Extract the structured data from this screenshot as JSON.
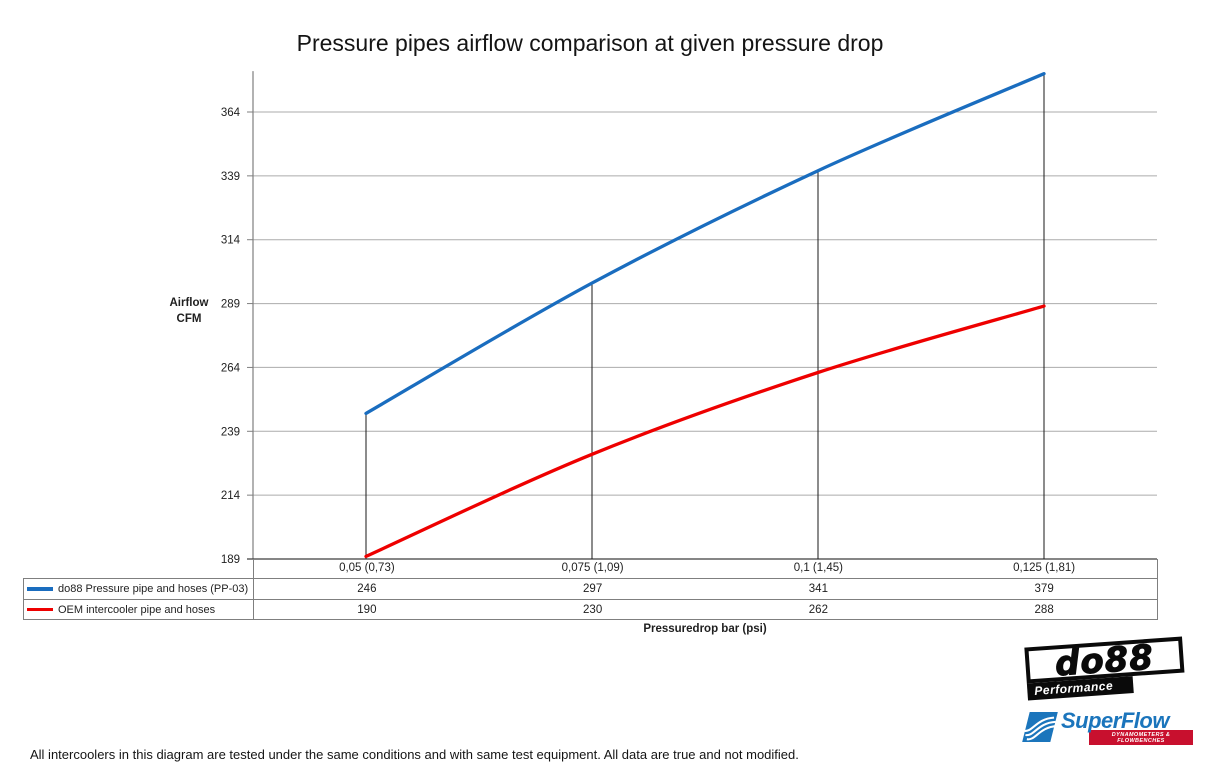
{
  "title": "Pressure pipes airflow comparison at given pressure drop",
  "chart_data": {
    "type": "line",
    "title": "Pressure pipes airflow comparison at given pressure drop",
    "xlabel": "Pressuredrop bar (psi)",
    "ylabel": [
      "Airflow",
      "CFM"
    ],
    "x_tick_labels": [
      "0,05 (0,73)",
      "0,075 (1,09)",
      "0,1 (1,45)",
      "0,125 (1,81)"
    ],
    "x_bar": [
      0.05,
      0.075,
      0.1,
      0.125
    ],
    "x_psi": [
      0.73,
      1.09,
      1.45,
      1.81
    ],
    "y_ticks": [
      189,
      214,
      239,
      264,
      289,
      314,
      339,
      364
    ],
    "ylim": [
      189,
      380
    ],
    "grid": "horizontal-only",
    "legend_position": "table-bottom-left",
    "drop_lines_at_series": 0,
    "series": [
      {
        "name": "do88 Pressure pipe and hoses (PP-03)",
        "color": "#1a6dbf",
        "values": [
          246,
          297,
          341,
          379
        ]
      },
      {
        "name": "OEM intercooler pipe and hoses",
        "color": "#ee0000",
        "values": [
          190,
          230,
          262,
          288
        ]
      }
    ]
  },
  "footer_note": "All intercoolers in this diagram are tested under the same conditions and with same test equipment. All data are true and not modified.",
  "logos": {
    "do88_text": "do88",
    "do88_sub": "Performance",
    "superflow_text": "SuperFlow",
    "superflow_sub": "DYNAMOMETERS & FLOWBENCHES"
  },
  "colors": {
    "grid": "#ababab",
    "axis": "#7f7f7f",
    "bottom_axis": "#3f3f3f",
    "drop_line": "#1a1a1a",
    "table_border": "#7f7f7f",
    "text": "#1f1f1f",
    "do88_black": "#0a0a0a",
    "superflow_blue": "#1b75bc",
    "superflow_red": "#c8102e"
  }
}
